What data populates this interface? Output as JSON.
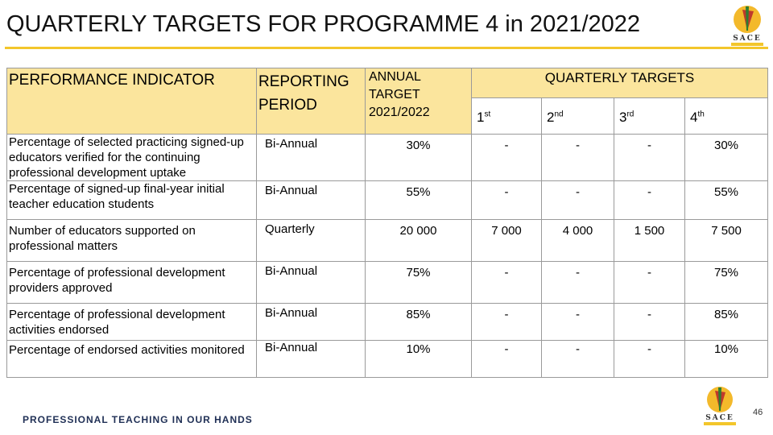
{
  "page": {
    "title": "QUARTERLY TARGETS FOR PROGRAMME 4 in 2021/2022",
    "page_number": "46",
    "tagline": "PROFESSIONAL TEACHING IN OUR HANDS",
    "logo_text": "SACE",
    "accent_color": "#f3c62b",
    "header_fill": "#fbe59d"
  },
  "table": {
    "headers": {
      "indicator": "PERFORMANCE INDICATOR",
      "period": "REPORTING PERIOD",
      "annual": "ANNUAL TARGET 2021/2022",
      "quarterly": "QUARTERLY TARGETS",
      "q1": "1",
      "q1_sup": "st",
      "q2": "2",
      "q2_sup": "nd",
      "q3": "3",
      "q3_sup": "rd",
      "q4": "4",
      "q4_sup": "th"
    },
    "rows": [
      {
        "indicator": "Percentage of selected practicing signed-up educators verified for the continuing professional development uptake",
        "period": "Bi-Annual",
        "annual": "30%",
        "q1": "-",
        "q2": "-",
        "q3": "-",
        "q4": "30%"
      },
      {
        "indicator": "Percentage of signed-up final-year initial teacher education students",
        "period": "Bi-Annual",
        "annual": "55%",
        "q1": "-",
        "q2": "-",
        "q3": "-",
        "q4": "55%"
      },
      {
        "indicator": "Number of educators supported on professional matters",
        "period": "Quarterly",
        "annual": "20 000",
        "q1": "7 000",
        "q2": "4 000",
        "q3": "1 500",
        "q4": "7 500"
      },
      {
        "indicator": "Percentage of professional development providers approved",
        "period": "Bi-Annual",
        "annual": "75%",
        "q1": "-",
        "q2": "-",
        "q3": "-",
        "q4": "75%"
      },
      {
        "indicator": "Percentage of professional development activities endorsed",
        "period": "Bi-Annual",
        "annual": "85%",
        "q1": "-",
        "q2": "-",
        "q3": "-",
        "q4": "85%"
      },
      {
        "indicator": "Percentage of endorsed activities monitored",
        "period": "Bi-Annual",
        "annual": "10%",
        "q1": "-",
        "q2": "-",
        "q3": "-",
        "q4": "10%"
      }
    ]
  }
}
